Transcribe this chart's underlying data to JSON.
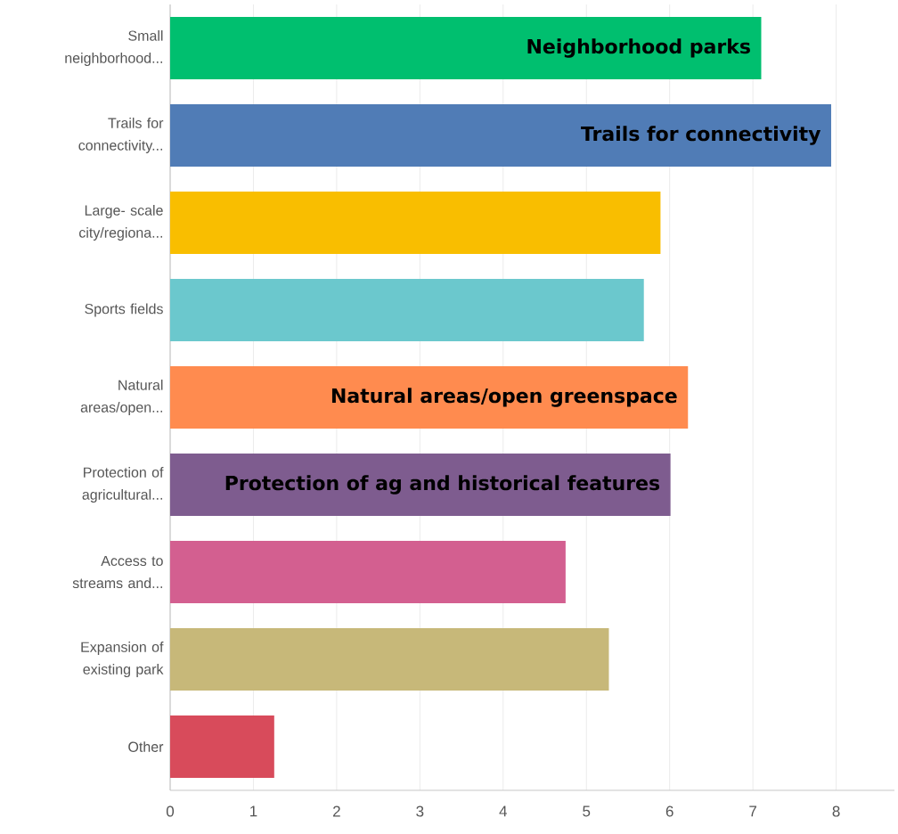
{
  "chart_data": {
    "type": "bar",
    "orientation": "horizontal",
    "categories": [
      "Small neighborhood...",
      "Trails for connectivity...",
      "Large- scale city/regiona...",
      "Sports fields",
      "Natural areas/open...",
      "Protection of agricultural...",
      "Access to streams and...",
      "Expansion of existing park",
      "Other"
    ],
    "values": [
      7.1,
      7.94,
      5.89,
      5.69,
      6.22,
      6.01,
      4.75,
      5.27,
      1.25
    ],
    "colors": [
      "#00bf6f",
      "#507cb6",
      "#f9be00",
      "#6bc8cd",
      "#ff8b4f",
      "#7e5c8f",
      "#d35f90",
      "#c7b879",
      "#d84b5b"
    ],
    "xlim": [
      0,
      8.7
    ],
    "xticks": [
      0,
      1,
      2,
      3,
      4,
      5,
      6,
      7,
      8
    ],
    "grid": "x",
    "annotations": [
      {
        "text": "Neighborhood parks",
        "x": 7.1,
        "y": "Small neighborhood..."
      },
      {
        "text": "Trails for connectivity",
        "x": 7.94,
        "y": "Trails for connectivity..."
      },
      {
        "text": "Natural areas/open greenspace",
        "x": 6.22,
        "y": "Natural areas/open..."
      },
      {
        "text": "Protection of ag and historical features",
        "x": 6.01,
        "y": "Protection of agricultural..."
      }
    ]
  }
}
